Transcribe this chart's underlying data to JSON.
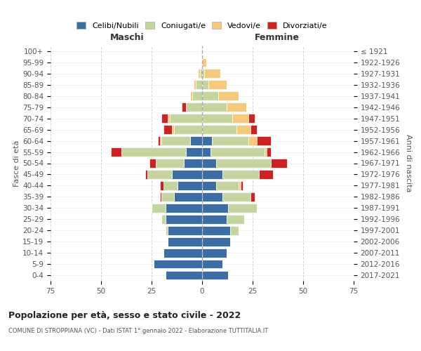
{
  "age_groups": [
    "100+",
    "95-99",
    "90-94",
    "85-89",
    "80-84",
    "75-79",
    "70-74",
    "65-69",
    "60-64",
    "55-59",
    "50-54",
    "45-49",
    "40-44",
    "35-39",
    "30-34",
    "25-29",
    "20-24",
    "15-19",
    "10-14",
    "5-9",
    "0-4"
  ],
  "birth_years": [
    "≤ 1921",
    "1922-1926",
    "1927-1931",
    "1932-1936",
    "1937-1941",
    "1942-1946",
    "1947-1951",
    "1952-1956",
    "1957-1961",
    "1962-1966",
    "1967-1971",
    "1972-1976",
    "1977-1981",
    "1982-1986",
    "1987-1991",
    "1992-1996",
    "1997-2001",
    "2002-2006",
    "2007-2011",
    "2012-2016",
    "2017-2021"
  ],
  "maschi": {
    "celibi": [
      0,
      0,
      0,
      0,
      0,
      0,
      0,
      0,
      6,
      8,
      9,
      15,
      12,
      14,
      18,
      18,
      17,
      17,
      19,
      24,
      18
    ],
    "coniugati": [
      0,
      0,
      1,
      3,
      5,
      8,
      16,
      14,
      14,
      32,
      14,
      12,
      7,
      6,
      7,
      2,
      1,
      0,
      0,
      0,
      0
    ],
    "vedovi": [
      0,
      0,
      1,
      1,
      1,
      0,
      1,
      1,
      1,
      0,
      0,
      0,
      0,
      0,
      0,
      0,
      0,
      0,
      0,
      0,
      0
    ],
    "divorziati": [
      0,
      0,
      0,
      0,
      0,
      2,
      3,
      4,
      1,
      5,
      3,
      1,
      2,
      1,
      0,
      0,
      0,
      0,
      0,
      0,
      0
    ]
  },
  "femmine": {
    "nubili": [
      0,
      0,
      0,
      0,
      0,
      0,
      0,
      0,
      5,
      4,
      7,
      10,
      7,
      10,
      13,
      12,
      14,
      14,
      12,
      10,
      13
    ],
    "coniugate": [
      0,
      0,
      1,
      3,
      8,
      12,
      15,
      17,
      18,
      27,
      27,
      18,
      11,
      14,
      14,
      9,
      4,
      0,
      0,
      0,
      0
    ],
    "vedove": [
      0,
      2,
      8,
      9,
      10,
      10,
      8,
      7,
      4,
      1,
      0,
      0,
      1,
      0,
      0,
      0,
      0,
      0,
      0,
      0,
      0
    ],
    "divorziate": [
      0,
      0,
      0,
      0,
      0,
      0,
      3,
      3,
      7,
      2,
      8,
      7,
      1,
      2,
      0,
      0,
      0,
      0,
      0,
      0,
      0
    ]
  },
  "colors": {
    "celibi": "#3d6ea3",
    "coniugati": "#c5d5a0",
    "vedovi": "#f5c97a",
    "divorziati": "#cc2222"
  },
  "xlim": 75,
  "title": "Popolazione per età, sesso e stato civile - 2022",
  "subtitle": "COMUNE DI STROPPIANA (VC) - Dati ISTAT 1° gennaio 2022 - Elaborazione TUTTITALIA.IT",
  "ylabel_left": "Fasce di età",
  "ylabel_right": "Anni di nascita",
  "xlabel_maschi": "Maschi",
  "xlabel_femmine": "Femmine",
  "legend_labels": [
    "Celibi/Nubili",
    "Coniugati/e",
    "Vedovi/e",
    "Divorziati/e"
  ],
  "bg_color": "#ffffff",
  "grid_color": "#cccccc"
}
